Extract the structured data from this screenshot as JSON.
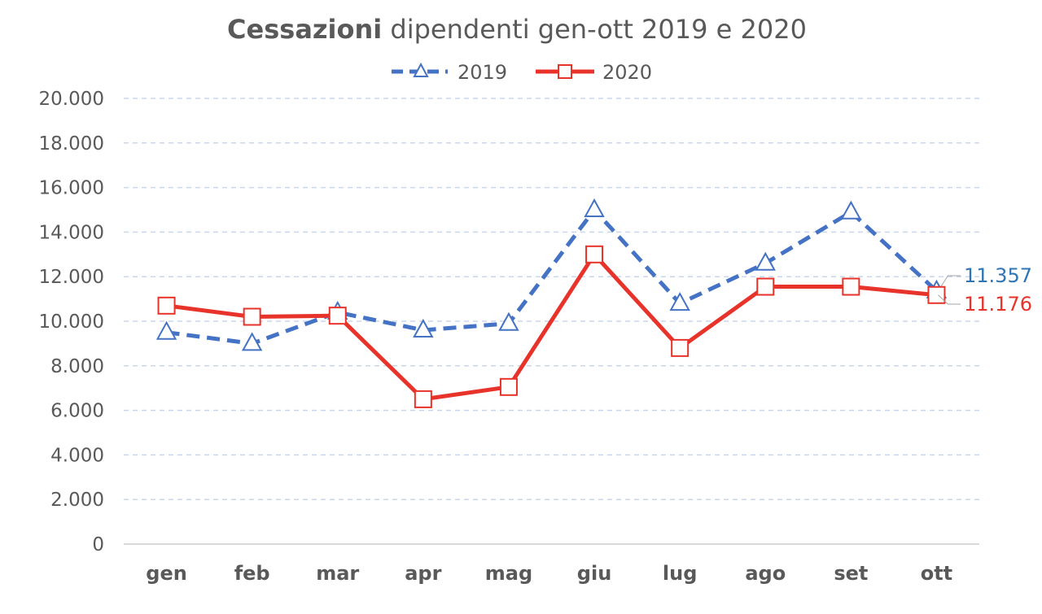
{
  "chart_data": {
    "type": "line",
    "title_bold": "Cessazioni",
    "title_rest": " dipendenti gen-ott 2019 e 2020",
    "categories": [
      "gen",
      "feb",
      "mar",
      "apr",
      "mag",
      "giu",
      "lug",
      "ago",
      "set",
      "ott"
    ],
    "y_ticks": [
      "0",
      "2.000",
      "4.000",
      "6.000",
      "8.000",
      "10.000",
      "12.000",
      "14.000",
      "16.000",
      "18.000",
      "20.000"
    ],
    "ylim": [
      0,
      20000
    ],
    "grid": true,
    "legend_position": "top-center",
    "series": [
      {
        "name": "2019",
        "color": "#4472C4",
        "line_style": "dashed",
        "marker": "triangle",
        "values": [
          9500,
          9000,
          10400,
          9600,
          9900,
          15000,
          10800,
          12600,
          14900,
          11357
        ],
        "end_label": "11.357",
        "end_label_color": "#2E75B6"
      },
      {
        "name": "2020",
        "color": "#E8332A",
        "line_style": "solid",
        "marker": "square",
        "values": [
          10700,
          10200,
          10250,
          6500,
          7050,
          13000,
          8800,
          11550,
          11550,
          11176
        ],
        "end_label": "11.176",
        "end_label_color": "#E8332A"
      }
    ]
  }
}
